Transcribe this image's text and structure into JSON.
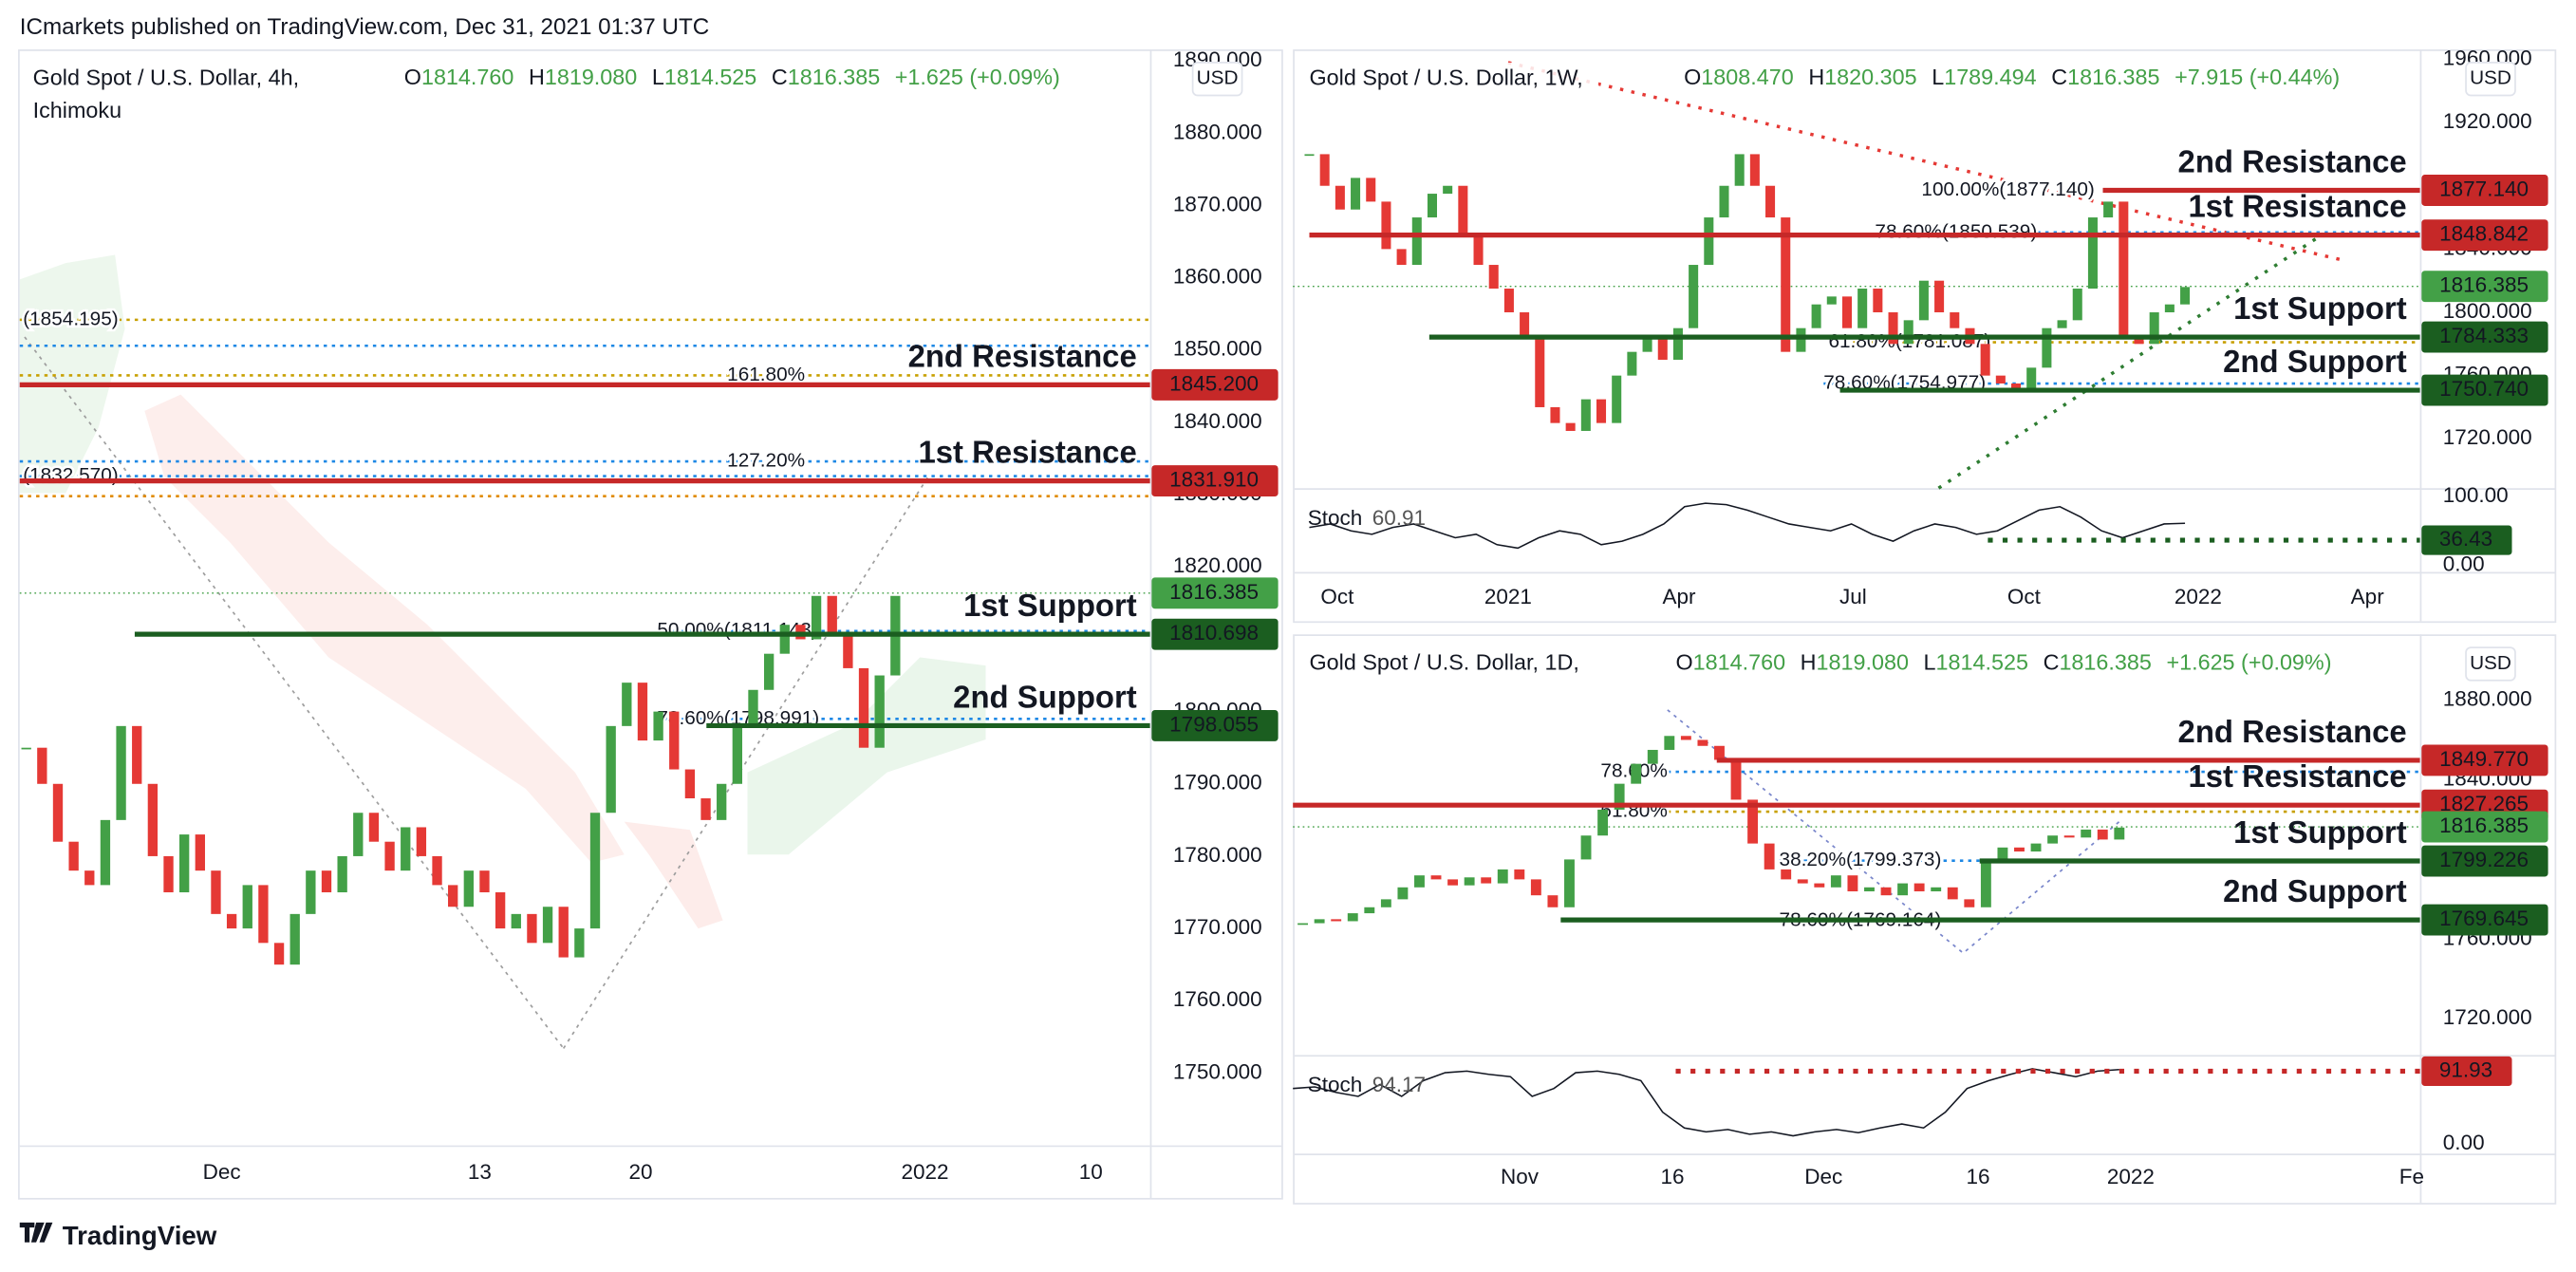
{
  "header": "ICmarkets published on TradingView.com, Dec 31, 2021 01:37 UTC",
  "footer": "TradingView",
  "chart_data": [
    {
      "type": "candlestick",
      "title": "Gold Spot / U.S. Dollar, 4h,",
      "indicator": "Ichimoku",
      "currency": "USD",
      "ohlc": [
        {
          "key": "O",
          "value": "1814.760"
        },
        {
          "key": "H",
          "value": "1819.080"
        },
        {
          "key": "L",
          "value": "1814.525"
        },
        {
          "key": "C",
          "value": "1816.385"
        }
      ],
      "change": "+1.625 (+0.09%)",
      "up_color": "#43a047",
      "down_color": "#e53935",
      "closes": [
        1795,
        1790,
        1782,
        1778,
        1776,
        1785,
        1798,
        1790,
        1780,
        1775,
        1783,
        1778,
        1772,
        1770,
        1776,
        1768,
        1765,
        1772,
        1778,
        1775,
        1780,
        1786,
        1782,
        1778,
        1784,
        1780,
        1776,
        1773,
        1778,
        1775,
        1770,
        1772,
        1768,
        1773,
        1766,
        1770,
        1786,
        1798,
        1804,
        1796,
        1800,
        1792,
        1788,
        1785,
        1790,
        1798,
        1803,
        1808,
        1812,
        1810,
        1816,
        1811,
        1806,
        1795,
        1805,
        1816
      ],
      "ylim": [
        1740,
        1891.59
      ],
      "yticks": [
        {
          "value": 1890,
          "label": "1890.000"
        },
        {
          "value": 1880,
          "label": "1880.000"
        },
        {
          "value": 1870,
          "label": "1870.000"
        },
        {
          "value": 1860,
          "label": "1860.000"
        },
        {
          "value": 1850,
          "label": "1850.000"
        },
        {
          "value": 1840,
          "label": "1840.000"
        },
        {
          "value": 1830,
          "label": "1830.000"
        },
        {
          "value": 1820,
          "label": "1820.000"
        },
        {
          "value": 1810,
          "label": "1810.000"
        },
        {
          "value": 1800,
          "label": "1800.000"
        },
        {
          "value": 1790,
          "label": "1790.000"
        },
        {
          "value": 1780,
          "label": "1780.000"
        },
        {
          "value": 1770,
          "label": "1770.000"
        },
        {
          "value": 1760,
          "label": "1760.000"
        },
        {
          "value": 1750,
          "label": "1750.000"
        }
      ],
      "x_labels": [
        "Dec",
        "13",
        "20",
        "2022",
        "10"
      ],
      "levels": [
        {
          "name": "2nd Resistance",
          "value": 1845.2,
          "label": "1845.200",
          "color": "#c62828"
        },
        {
          "name": "1st Resistance",
          "value": 1831.91,
          "label": "1831.910",
          "color": "#c62828"
        },
        {
          "name": "1st Support",
          "value": 1810.698,
          "label": "1810.698",
          "color": "#1b5e20"
        },
        {
          "name": "2nd Support",
          "value": 1798.055,
          "label": "1798.055",
          "color": "#1b5e20"
        }
      ],
      "level_text_colors": {
        "resistance": "#c62828",
        "support": "#3d7a1c"
      },
      "fibs": [
        {
          "value": 1854.195,
          "color": "#c8a000",
          "label": "(1854.195)"
        },
        {
          "value": 1850.6,
          "color": "#1e88e5"
        },
        {
          "value": 1846.5,
          "color": "#c8a000",
          "label": "161.80%"
        },
        {
          "value": 1834.6,
          "color": "#1e88e5",
          "label": "127.20%"
        },
        {
          "value": 1832.57,
          "color": "#1e88e5",
          "label": "(1832.570)"
        },
        {
          "value": 1829.8,
          "color": "#e08a00"
        },
        {
          "value": 1811.143,
          "color": "#1e88e5",
          "label": "50.00%(1811.143)"
        },
        {
          "value": 1798.991,
          "color": "#1e88e5",
          "label": "78.60%(1798.991)"
        }
      ],
      "last": {
        "value": 1816.385,
        "label": "1816.385",
        "color": "#43a047"
      }
    },
    {
      "type": "candlestick",
      "title": "Gold Spot / U.S. Dollar, 1W,",
      "currency": "USD",
      "ohlc": [
        {
          "key": "O",
          "value": "1808.470"
        },
        {
          "key": "H",
          "value": "1820.305"
        },
        {
          "key": "L",
          "value": "1789.494"
        },
        {
          "key": "C",
          "value": "1816.385"
        }
      ],
      "change": "+7.915 (+0.44%)",
      "up_color": "#43a047",
      "down_color": "#e53935",
      "closes": [
        1900,
        1880,
        1865,
        1885,
        1870,
        1840,
        1830,
        1860,
        1875,
        1880,
        1850,
        1830,
        1815,
        1800,
        1785,
        1740,
        1730,
        1725,
        1745,
        1730,
        1760,
        1775,
        1785,
        1770,
        1790,
        1830,
        1860,
        1880,
        1900,
        1880,
        1860,
        1775,
        1790,
        1805,
        1810,
        1790,
        1815,
        1800,
        1780,
        1795,
        1820,
        1800,
        1790,
        1780,
        1760,
        1755,
        1750,
        1765,
        1790,
        1795,
        1815,
        1860,
        1870,
        1785,
        1780,
        1800,
        1805,
        1816
      ],
      "ylim": [
        1688.83,
        1966.23
      ],
      "yticks": [
        {
          "value": 1960,
          "label": "1960.000"
        },
        {
          "value": 1920,
          "label": "1920.000"
        },
        {
          "value": 1880,
          "label": "1880.000"
        },
        {
          "value": 1840,
          "label": "1840.000"
        },
        {
          "value": 1800,
          "label": "1800.000"
        },
        {
          "value": 1760,
          "label": "1760.000"
        },
        {
          "value": 1720,
          "label": "1720.000"
        }
      ],
      "x_labels": [
        "Oct",
        "2021",
        "Apr",
        "Jul",
        "Oct",
        "2022",
        "Apr"
      ],
      "levels": [
        {
          "name": "2nd Resistance",
          "value": 1877.14,
          "label": "1877.140",
          "color": "#c62828"
        },
        {
          "name": "1st Resistance",
          "value": 1848.842,
          "label": "1848.842",
          "color": "#c62828"
        },
        {
          "name": "1st Support",
          "value": 1784.333,
          "label": "1784.333",
          "color": "#1b5e20"
        },
        {
          "name": "2nd Support",
          "value": 1750.74,
          "label": "1750.740",
          "color": "#1b5e20"
        }
      ],
      "level_text_colors": {
        "resistance": "#c62828",
        "support": "#3d7a1c"
      },
      "fibs": [
        {
          "value": 1877.14,
          "color": "#787b86",
          "label": "100.00%(1877.140)"
        },
        {
          "value": 1850.539,
          "color": "#1e88e5",
          "label": "78.60%(1850.539)"
        },
        {
          "value": 1781.087,
          "color": "#c8a000",
          "label": "61.80%(1781.087)"
        },
        {
          "value": 1754.977,
          "color": "#1e88e5",
          "label": "78.60%(1754.977)"
        }
      ],
      "last": {
        "value": 1816.385,
        "label": "1816.385",
        "color": "#43a047"
      },
      "stoch": {
        "name": "Stoch",
        "value": "60.91",
        "ylim": [
          -9.52,
          109.52
        ],
        "yticks": [
          {
            "value": 100,
            "label": "100.00"
          },
          {
            "value": 0,
            "label": "0.00"
          }
        ],
        "values": [
          55,
          60,
          50,
          45,
          55,
          60,
          50,
          40,
          45,
          30,
          25,
          40,
          50,
          45,
          30,
          35,
          45,
          60,
          85,
          90,
          88,
          80,
          70,
          60,
          55,
          50,
          60,
          45,
          35,
          50,
          60,
          55,
          45,
          50,
          65,
          80,
          85,
          70,
          50,
          40,
          50,
          60,
          61
        ],
        "level": {
          "value": 36.43,
          "label": "36.43",
          "color": "#1b5e20"
        }
      }
    },
    {
      "type": "candlestick",
      "title": "Gold Spot / U.S. Dollar, 1D,",
      "currency": "USD",
      "ohlc": [
        {
          "key": "O",
          "value": "1814.760"
        },
        {
          "key": "H",
          "value": "1819.080"
        },
        {
          "key": "L",
          "value": "1814.525"
        },
        {
          "key": "C",
          "value": "1816.385"
        }
      ],
      "change": "+1.625 (+0.09%)",
      "up_color": "#43a047",
      "down_color": "#e53935",
      "closes": [
        1768,
        1770,
        1769,
        1773,
        1776,
        1780,
        1786,
        1792,
        1790,
        1787,
        1791,
        1788,
        1795,
        1790,
        1782,
        1776,
        1800,
        1812,
        1825,
        1838,
        1848,
        1855,
        1862,
        1860,
        1857,
        1850,
        1830,
        1808,
        1795,
        1790,
        1788,
        1786,
        1792,
        1784,
        1786,
        1782,
        1788,
        1784,
        1786,
        1780,
        1776,
        1800,
        1806,
        1804,
        1808,
        1812,
        1811,
        1815,
        1810,
        1816
      ],
      "ylim": [
        1703.51,
        1912.16
      ],
      "yticks": [
        {
          "value": 1880,
          "label": "1880.000"
        },
        {
          "value": 1840,
          "label": "1840.000"
        },
        {
          "value": 1800,
          "label": "1800.000"
        },
        {
          "value": 1760,
          "label": "1760.000"
        },
        {
          "value": 1720,
          "label": "1720.000"
        }
      ],
      "x_labels": [
        "Nov",
        "16",
        "Dec",
        "16",
        "2022",
        "Fe"
      ],
      "levels": [
        {
          "name": "2nd Resistance",
          "value": 1849.77,
          "label": "1849.770",
          "color": "#c62828"
        },
        {
          "name": "1st Resistance",
          "value": 1827.265,
          "label": "1827.265",
          "color": "#c62828"
        },
        {
          "name": "1st Support",
          "value": 1799.226,
          "label": "1799.226",
          "color": "#1b5e20"
        },
        {
          "name": "2nd Support",
          "value": 1769.645,
          "label": "1769.645",
          "color": "#1b5e20"
        }
      ],
      "level_text_colors": {
        "resistance": "#c62828",
        "support": "#3d7a1c"
      },
      "fibs": [
        {
          "value": 1844,
          "color": "#1e88e5",
          "label": "78.60%"
        },
        {
          "value": 1824,
          "color": "#c8a000",
          "label": "61.80%"
        },
        {
          "value": 1799.373,
          "color": "#1e88e5",
          "label": "38.20%(1799.373)"
        },
        {
          "value": 1769.164,
          "color": "#1e88e5",
          "label": "78.60%(1769.164)"
        }
      ],
      "last": {
        "value": 1816.385,
        "label": "1816.385",
        "color": "#43a047"
      },
      "stoch": {
        "name": "Stoch",
        "value": "94.17",
        "ylim": [
          -8.33,
          106.25
        ],
        "yticks": [
          {
            "value": 0,
            "label": "0.00"
          }
        ],
        "values": [
          70,
          72,
          65,
          60,
          75,
          60,
          80,
          90,
          92,
          88,
          85,
          60,
          70,
          90,
          92,
          88,
          80,
          40,
          20,
          15,
          18,
          12,
          15,
          10,
          15,
          18,
          14,
          20,
          25,
          20,
          40,
          70,
          80,
          88,
          95,
          90,
          85,
          92,
          94
        ],
        "level": {
          "value": 91.93,
          "label": "91.93",
          "color": "#c62828"
        }
      }
    }
  ]
}
